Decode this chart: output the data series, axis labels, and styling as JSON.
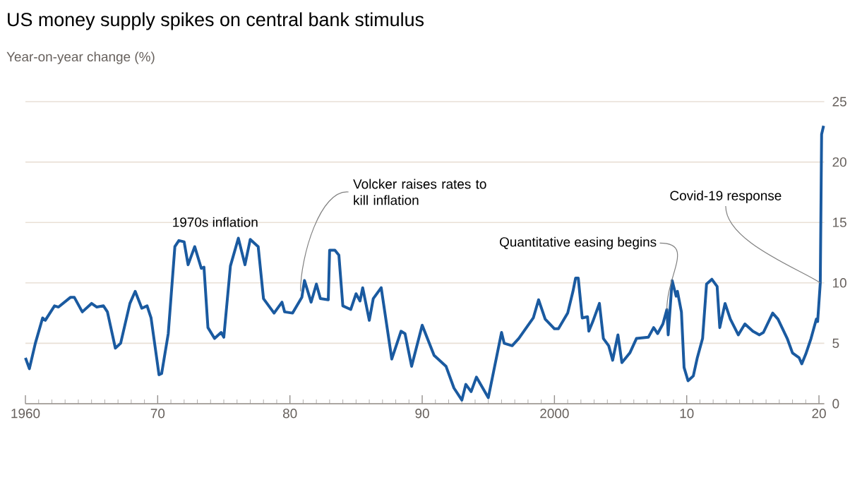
{
  "chart_data": {
    "type": "line",
    "title": "US money supply spikes on central bank stimulus",
    "subtitle": "Year-on-year change (%)",
    "x": [
      1960.0,
      1960.3,
      1960.75,
      1961.3,
      1961.5,
      1962.2,
      1962.5,
      1963.4,
      1963.7,
      1964.3,
      1965.0,
      1965.4,
      1965.9,
      1966.2,
      1966.8,
      1967.2,
      1967.9,
      1968.3,
      1968.8,
      1969.2,
      1969.5,
      1970.1,
      1970.3,
      1970.8,
      1971.3,
      1971.6,
      1972.0,
      1972.3,
      1972.8,
      1973.3,
      1973.5,
      1973.8,
      1974.3,
      1974.8,
      1975.0,
      1975.5,
      1976.1,
      1976.6,
      1977.0,
      1977.6,
      1978.0,
      1978.8,
      1979.4,
      1979.6,
      1980.2,
      1980.9,
      1981.1,
      1981.6,
      1982.0,
      1982.3,
      1982.9,
      1983.0,
      1983.4,
      1983.7,
      1984.0,
      1984.6,
      1985.0,
      1985.3,
      1985.5,
      1986.0,
      1986.3,
      1986.9,
      1987.7,
      1988.4,
      1988.7,
      1989.2,
      1990.0,
      1990.9,
      1991.8,
      1992.4,
      1993.0,
      1993.3,
      1993.7,
      1994.1,
      1995.0,
      1995.5,
      1996.0,
      1996.2,
      1996.8,
      1997.3,
      1998.4,
      1998.8,
      1999.3,
      2000.0,
      2000.3,
      2001.0,
      2001.4,
      2001.6,
      2001.8,
      2002.1,
      2002.5,
      2002.6,
      2002.9,
      2003.4,
      2003.7,
      2004.1,
      2004.4,
      2004.8,
      2005.1,
      2005.7,
      2006.2,
      2007.1,
      2007.5,
      2007.8,
      2008.2,
      2008.5,
      2008.6,
      2008.9,
      2009.2,
      2009.3,
      2009.6,
      2009.8,
      2010.1,
      2010.5,
      2010.8,
      2011.2,
      2011.5,
      2011.9,
      2012.3,
      2012.5,
      2012.9,
      2013.3,
      2013.9,
      2014.4,
      2015.0,
      2015.5,
      2015.8,
      2016.5,
      2016.9,
      2017.6,
      2018.0,
      2018.5,
      2018.7,
      2019.0,
      2019.4,
      2019.8,
      2019.9,
      2020.1,
      2020.2,
      2020.35
    ],
    "series": [
      {
        "color": "#1a5aa0",
        "values": [
          3.8,
          2.9,
          5.0,
          7.1,
          6.9,
          8.1,
          8.0,
          8.8,
          8.8,
          7.6,
          8.3,
          8.0,
          8.1,
          7.6,
          4.6,
          5.0,
          8.3,
          9.3,
          7.9,
          8.1,
          7.1,
          2.4,
          2.5,
          5.8,
          13.0,
          13.5,
          13.4,
          11.5,
          13.0,
          11.2,
          11.3,
          6.3,
          5.4,
          5.9,
          5.5,
          11.4,
          13.7,
          11.5,
          13.6,
          13.0,
          8.7,
          7.5,
          8.4,
          7.6,
          7.5,
          8.8,
          10.2,
          8.4,
          9.9,
          8.7,
          8.6,
          12.7,
          12.7,
          12.3,
          8.1,
          7.8,
          9.1,
          8.5,
          9.6,
          6.9,
          8.7,
          9.6,
          3.7,
          6.0,
          5.8,
          3.1,
          6.5,
          4.0,
          3.1,
          1.3,
          0.3,
          1.6,
          1.0,
          2.2,
          0.5,
          3.2,
          5.9,
          5.0,
          4.8,
          5.4,
          7.1,
          8.6,
          7.0,
          6.2,
          6.2,
          7.5,
          9.3,
          10.4,
          10.4,
          7.1,
          7.2,
          6.0,
          6.8,
          8.3,
          5.4,
          4.8,
          3.6,
          5.7,
          3.4,
          4.2,
          5.4,
          5.5,
          6.3,
          5.8,
          6.6,
          7.8,
          5.7,
          10.2,
          8.9,
          9.3,
          7.6,
          3.0,
          1.9,
          2.3,
          3.8,
          5.4,
          9.9,
          10.3,
          9.7,
          6.3,
          8.3,
          7.0,
          5.7,
          6.6,
          6.0,
          5.7,
          5.9,
          7.5,
          7.0,
          5.4,
          4.2,
          3.8,
          3.3,
          4.1,
          5.4,
          7.0,
          6.8,
          10.0,
          22.3,
          23.0
        ]
      }
    ],
    "xlim": [
      1960,
      2020.4
    ],
    "ylim": [
      0,
      25
    ],
    "xticks": [
      {
        "value": 1960,
        "label": "1960"
      },
      {
        "value": 1961,
        "label": null
      },
      {
        "value": 1962,
        "label": null
      },
      {
        "value": 1963,
        "label": null
      },
      {
        "value": 1964,
        "label": null
      },
      {
        "value": 1965,
        "label": null
      },
      {
        "value": 1966,
        "label": null
      },
      {
        "value": 1967,
        "label": null
      },
      {
        "value": 1968,
        "label": null
      },
      {
        "value": 1969,
        "label": null
      },
      {
        "value": 1970,
        "label": "70"
      },
      {
        "value": 1971,
        "label": null
      },
      {
        "value": 1972,
        "label": null
      },
      {
        "value": 1973,
        "label": null
      },
      {
        "value": 1974,
        "label": null
      },
      {
        "value": 1975,
        "label": null
      },
      {
        "value": 1976,
        "label": null
      },
      {
        "value": 1977,
        "label": null
      },
      {
        "value": 1978,
        "label": null
      },
      {
        "value": 1979,
        "label": null
      },
      {
        "value": 1980,
        "label": "80"
      },
      {
        "value": 1981,
        "label": null
      },
      {
        "value": 1982,
        "label": null
      },
      {
        "value": 1983,
        "label": null
      },
      {
        "value": 1984,
        "label": null
      },
      {
        "value": 1985,
        "label": null
      },
      {
        "value": 1986,
        "label": null
      },
      {
        "value": 1987,
        "label": null
      },
      {
        "value": 1988,
        "label": null
      },
      {
        "value": 1989,
        "label": null
      },
      {
        "value": 1990,
        "label": "90"
      },
      {
        "value": 1991,
        "label": null
      },
      {
        "value": 1992,
        "label": null
      },
      {
        "value": 1993,
        "label": null
      },
      {
        "value": 1994,
        "label": null
      },
      {
        "value": 1995,
        "label": null
      },
      {
        "value": 1996,
        "label": null
      },
      {
        "value": 1997,
        "label": null
      },
      {
        "value": 1998,
        "label": null
      },
      {
        "value": 1999,
        "label": null
      },
      {
        "value": 2000,
        "label": "2000"
      },
      {
        "value": 2001,
        "label": null
      },
      {
        "value": 2002,
        "label": null
      },
      {
        "value": 2003,
        "label": null
      },
      {
        "value": 2004,
        "label": null
      },
      {
        "value": 2005,
        "label": null
      },
      {
        "value": 2006,
        "label": null
      },
      {
        "value": 2007,
        "label": null
      },
      {
        "value": 2008,
        "label": null
      },
      {
        "value": 2009,
        "label": null
      },
      {
        "value": 2010,
        "label": "10"
      },
      {
        "value": 2011,
        "label": null
      },
      {
        "value": 2012,
        "label": null
      },
      {
        "value": 2013,
        "label": null
      },
      {
        "value": 2014,
        "label": null
      },
      {
        "value": 2015,
        "label": null
      },
      {
        "value": 2016,
        "label": null
      },
      {
        "value": 2017,
        "label": null
      },
      {
        "value": 2018,
        "label": null
      },
      {
        "value": 2019,
        "label": null
      },
      {
        "value": 2020,
        "label": "20"
      }
    ],
    "yticks": [
      0,
      5,
      10,
      15,
      20,
      25
    ],
    "grid": "y",
    "marker": "none",
    "line_style": "solid",
    "annotations": [
      {
        "text": "1970s inflation",
        "x": 1972.0,
        "y": 13.4
      },
      {
        "text": "Volcker raises rates to kill inflation",
        "x": 1980.8,
        "y": 9.3
      },
      {
        "text": "Quantitative easing begins",
        "x": 2008.5,
        "y": 7.8
      },
      {
        "text": "Covid-19 response",
        "x": 2020.1,
        "y": 10.0
      }
    ]
  }
}
